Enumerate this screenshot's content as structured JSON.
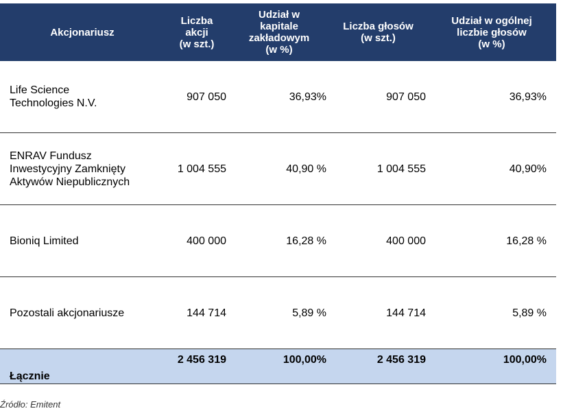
{
  "table": {
    "headers": [
      "Akcjonariusz",
      "Liczba\nakcji\n(w szt.)",
      "Udział w\nkapitale\nzakładowym\n(w %)",
      "Liczba głosów\n(w szt.)",
      "Udział w ogólnej\nliczbie głosów\n(w %)"
    ],
    "header_color": "#233d6b",
    "rows": [
      {
        "name": "Life Science\nTechnologies N.V.",
        "shares": "907 050",
        "capital_pct": "36,93%",
        "votes": "907 050",
        "votes_pct": "36,93%"
      },
      {
        "name": "ENRAV Fundusz\nInwestycyjny Zamknięty\nAktywów Niepublicznych",
        "shares": "1 004 555",
        "capital_pct": "40,90 %",
        "votes": "1 004 555",
        "votes_pct": "40,90%"
      },
      {
        "name": "Bioniq Limited",
        "shares": "400 000",
        "capital_pct": "16,28 %",
        "votes": "400 000",
        "votes_pct": "16,28 %"
      },
      {
        "name": "Pozostali akcjonariusze",
        "shares": "144 714",
        "capital_pct": "5,89 %",
        "votes": "144 714",
        "votes_pct": "5,89 %"
      }
    ],
    "total": {
      "name": "Łącznie",
      "shares": "2 456 319",
      "capital_pct": "100,00%",
      "votes": "2 456 319",
      "votes_pct": "100,00%",
      "row_color": "#c5d6ee"
    }
  },
  "source": "Źródło: Emitent"
}
